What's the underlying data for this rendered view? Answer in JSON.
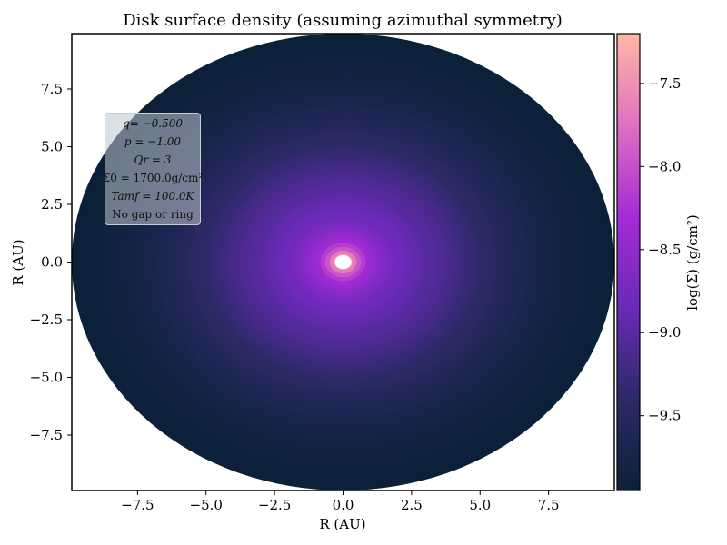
{
  "chart_data": {
    "type": "heatmap",
    "title": "Disk surface density (assuming azimuthal symmetry)",
    "xlabel": "R (AU)",
    "ylabel": "R (AU)",
    "xlim": [
      -9.9,
      9.9
    ],
    "ylim": [
      -9.9,
      9.9
    ],
    "xticks": [
      -7.5,
      -5.0,
      -2.5,
      0.0,
      2.5,
      5.0,
      7.5
    ],
    "yticks": [
      7.5,
      5.0,
      2.5,
      0.0,
      -2.5,
      -5.0,
      -7.5
    ],
    "xtick_labels": [
      "−7.5",
      "−5.0",
      "−2.5",
      "0.0",
      "2.5",
      "5.0",
      "7.5"
    ],
    "ytick_labels": [
      "7.5",
      "5.0",
      "2.5",
      "0.0",
      "−2.5",
      "−5.0",
      "−7.5"
    ],
    "colorbar": {
      "label": "log(Σ) (g/cm²)",
      "range": [
        -9.95,
        -7.2
      ],
      "ticks": [
        -7.5,
        -8.0,
        -8.5,
        -9.0,
        -9.5
      ],
      "tick_labels": [
        "−7.5",
        "−8.0",
        "−8.5",
        "−9.0",
        "−9.5"
      ],
      "colormap": "magma-like",
      "stops": [
        "#0b2138",
        "#2b2a66",
        "#6a2ab8",
        "#a42bd6",
        "#e070c0",
        "#ffb8a4"
      ]
    },
    "radial_profile": {
      "r_au": [
        0.3,
        0.6,
        1.0,
        1.5,
        2.0,
        3.0,
        4.0,
        5.0,
        6.0,
        7.0,
        8.0,
        9.0,
        9.9
      ],
      "log_sigma": [
        -7.2,
        -7.9,
        -8.35,
        -8.6,
        -8.78,
        -8.98,
        -9.15,
        -9.35,
        -9.55,
        -9.7,
        -9.82,
        -9.9,
        -9.95
      ]
    },
    "annotation_lines": [
      "q= −0.500",
      "p = −1.00",
      "Qr = 3",
      "Σ0 = 1700.0g/cm²",
      "Tamf = 100.0K",
      "No gap or ring"
    ],
    "grid": false
  }
}
